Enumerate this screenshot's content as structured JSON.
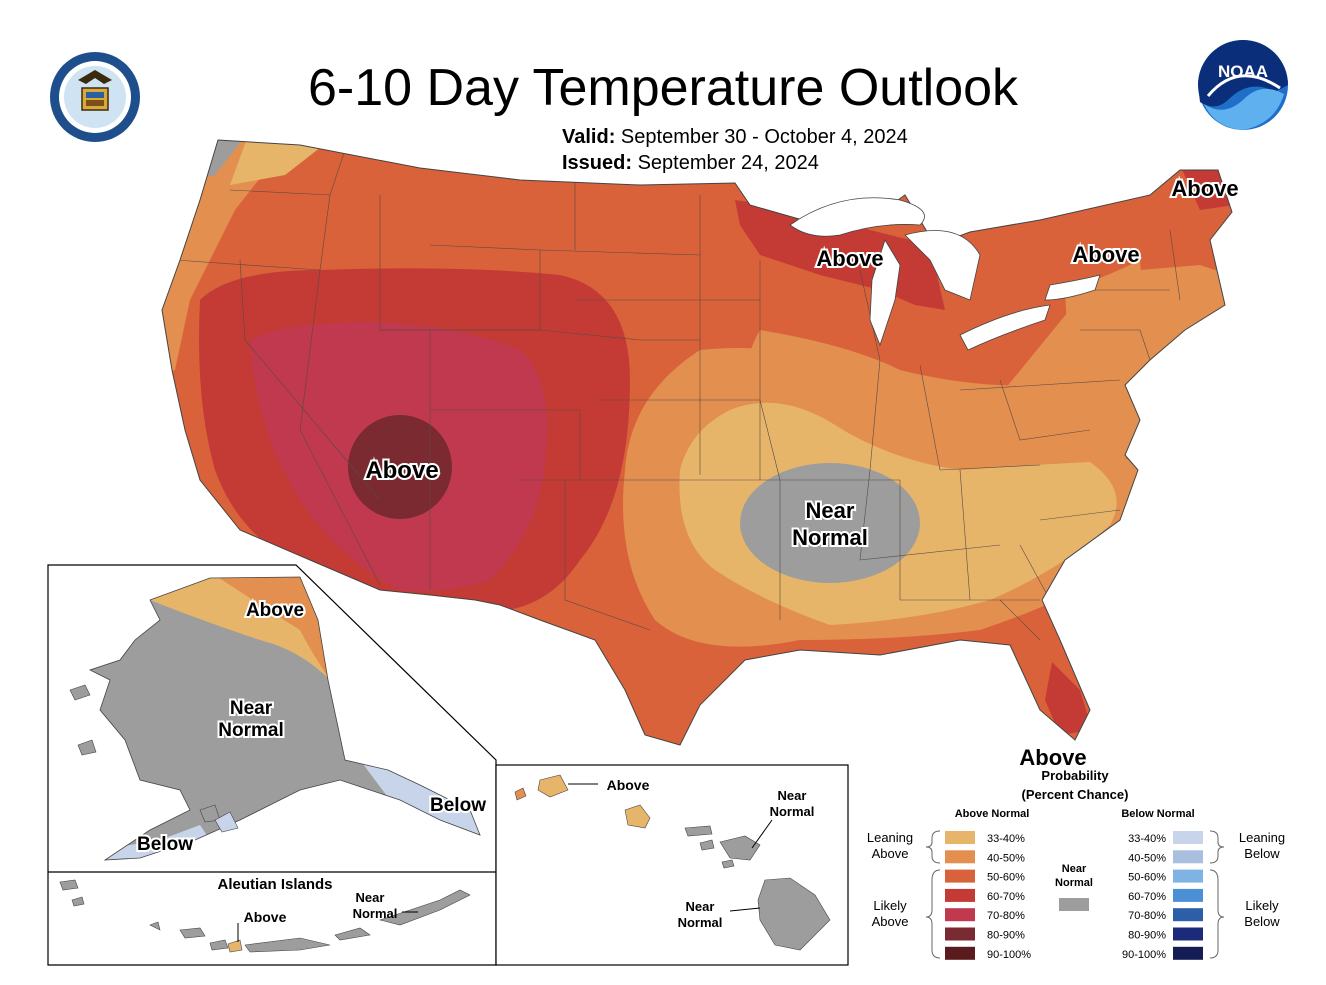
{
  "title": "6-10 Day Temperature Outlook",
  "valid_label": "Valid:",
  "valid_value": "September 30 - October 4, 2024",
  "issued_label": "Issued:",
  "issued_value": "September 24, 2024",
  "noaa_logo_text": "NOAA",
  "colors": {
    "above_33_40": "#e7b56a",
    "above_40_50": "#e38f4f",
    "above_50_60": "#d9623a",
    "above_60_70": "#c43b35",
    "above_70_80": "#c0394e",
    "above_80_90": "#7a2a30",
    "above_90_100": "#5b1a1e",
    "near_normal": "#9d9d9d",
    "below_33_40": "#c8d4ea",
    "below_40_50": "#a9bfe0",
    "below_50_60": "#7fb3e3",
    "below_60_70": "#4b8fd4",
    "below_70_80": "#2c5fa8",
    "below_80_90": "#1c2a7a",
    "below_90_100": "#161d55"
  },
  "conus_labels": {
    "southwest": "Above",
    "great_lakes": "Above",
    "new_england": "Above",
    "maine": "Above",
    "florida": "Above",
    "central": [
      "Near",
      "Normal"
    ]
  },
  "alaska": {
    "north": "Above",
    "interior": [
      "Near",
      "Normal"
    ],
    "southeast": "Below",
    "southwest": "Below"
  },
  "aleutians": {
    "title": "Aleutian Islands",
    "above": "Above",
    "near": [
      "Near",
      "Normal"
    ]
  },
  "hawaii": {
    "kauai": "Above",
    "near_top": [
      "Near",
      "Normal"
    ],
    "near_bottom": [
      "Near",
      "Normal"
    ]
  },
  "legend": {
    "title": [
      "Probability",
      "(Percent Chance)"
    ],
    "above_header": "Above Normal",
    "below_header": "Below Normal",
    "near_header": [
      "Near",
      "Normal"
    ],
    "above_classes": [
      "33-40%",
      "40-50%",
      "50-60%",
      "60-70%",
      "70-80%",
      "80-90%",
      "90-100%"
    ],
    "below_classes": [
      "33-40%",
      "40-50%",
      "50-60%",
      "60-70%",
      "70-80%",
      "80-90%",
      "90-100%"
    ],
    "leaning_above": [
      "Leaning",
      "Above"
    ],
    "likely_above": [
      "Likely",
      "Above"
    ],
    "leaning_below": [
      "Leaning",
      "Below"
    ],
    "likely_below": [
      "Likely",
      "Below"
    ]
  }
}
